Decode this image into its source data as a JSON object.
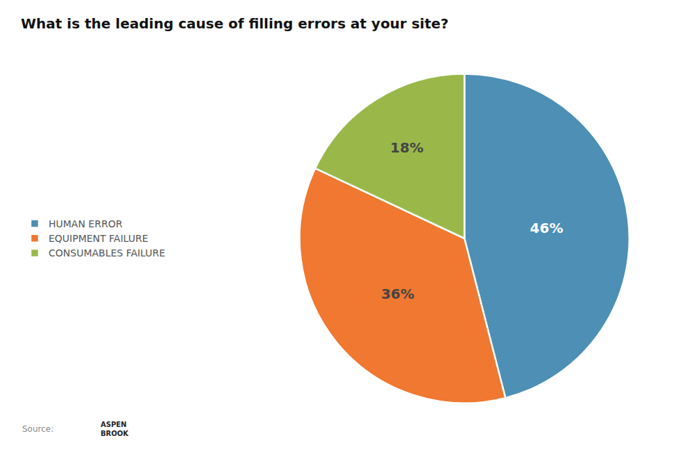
{
  "chart_data": {
    "type": "pie",
    "title": "What is the leading cause of filling errors at your site?",
    "categories": [
      "HUMAN ERROR",
      "EQUIPMENT FAILURE",
      "CONSUMABLES FAILURE"
    ],
    "values": [
      46,
      36,
      18
    ],
    "value_labels": [
      "46%",
      "36%",
      "18%"
    ],
    "colors": [
      "#4d8fb5",
      "#f07830",
      "#9ab84a"
    ],
    "data_labels": true,
    "legend": "left",
    "annotations": [
      "Source:",
      "ASPEN\nBROOK"
    ]
  }
}
